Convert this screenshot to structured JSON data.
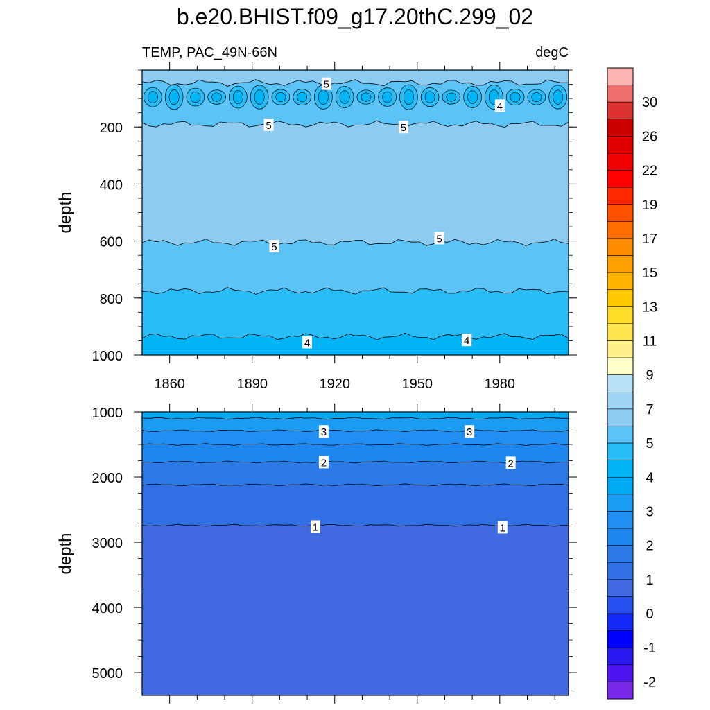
{
  "title": "b.e20.BHIST.f09_g17.20thC.299_02",
  "subtitle_left": "TEMP, PAC_49N-66N",
  "subtitle_right": "degC",
  "chart_data": [
    {
      "type": "heatmap",
      "panel": "upper",
      "ylabel": "depth",
      "ylim": [
        0,
        1000
      ],
      "y_reversed": true,
      "yticks": [
        "200",
        "400",
        "600",
        "800",
        "1000"
      ],
      "xlim": [
        1850,
        2005
      ],
      "xticks": [
        "1860",
        "1890",
        "1920",
        "1950",
        "1980"
      ],
      "bands": [
        {
          "top": 0,
          "bottom": 45,
          "color": "#8ecbf0"
        },
        {
          "top": 45,
          "bottom": 190,
          "color": "#5bc3f5"
        },
        {
          "top": 190,
          "bottom": 605,
          "color": "#8ecbf0"
        },
        {
          "top": 605,
          "bottom": 775,
          "color": "#5bc3f5"
        },
        {
          "top": 775,
          "bottom": 935,
          "color": "#29bdf8"
        },
        {
          "top": 935,
          "bottom": 1000,
          "color": "#00b4f5"
        }
      ],
      "contour_labels": [
        {
          "text": "5",
          "x": 1917,
          "y": 48
        },
        {
          "text": "4",
          "x": 1980,
          "y": 125
        },
        {
          "text": "5",
          "x": 1896,
          "y": 192
        },
        {
          "text": "5",
          "x": 1945,
          "y": 200
        },
        {
          "text": "5",
          "x": 1898,
          "y": 618
        },
        {
          "text": "5",
          "x": 1958,
          "y": 590
        },
        {
          "text": "4",
          "x": 1910,
          "y": 955
        },
        {
          "text": "4",
          "x": 1968,
          "y": 947
        }
      ]
    },
    {
      "type": "heatmap",
      "panel": "lower",
      "ylabel": "depth",
      "ylim": [
        1000,
        5350
      ],
      "y_reversed": true,
      "yticks": [
        "1000",
        "2000",
        "3000",
        "4000",
        "5000"
      ],
      "xlim": [
        1850,
        2005
      ],
      "bands": [
        {
          "top": 1000,
          "bottom": 1100,
          "color": "#00aaf2"
        },
        {
          "top": 1100,
          "bottom": 1290,
          "color": "#1a9cf5"
        },
        {
          "top": 1290,
          "bottom": 1500,
          "color": "#218ef3"
        },
        {
          "top": 1500,
          "bottom": 1770,
          "color": "#1d86ef"
        },
        {
          "top": 1770,
          "bottom": 2120,
          "color": "#2b7ae8"
        },
        {
          "top": 2120,
          "bottom": 2740,
          "color": "#3070e4"
        },
        {
          "top": 2740,
          "bottom": 5350,
          "color": "#4169e1"
        }
      ],
      "contour_labels": [
        {
          "text": "3",
          "x": 1916,
          "y": 1300
        },
        {
          "text": "3",
          "x": 1969,
          "y": 1300
        },
        {
          "text": "2",
          "x": 1916,
          "y": 1770
        },
        {
          "text": "2",
          "x": 1984,
          "y": 1780
        },
        {
          "text": "1",
          "x": 1913,
          "y": 2760
        },
        {
          "text": "1",
          "x": 1981,
          "y": 2770
        }
      ]
    }
  ],
  "colorbar": {
    "labels": [
      "30",
      "26",
      "22",
      "19",
      "17",
      "15",
      "13",
      "11",
      "9",
      "7",
      "5",
      "4",
      "3",
      "2",
      "1",
      "0",
      "-1",
      "-2"
    ],
    "colors": [
      "#ffb4b4",
      "#f07070",
      "#dc3232",
      "#cd0000",
      "#e10000",
      "#f00000",
      "#ff0000",
      "#ff2800",
      "#ff5000",
      "#ff6e00",
      "#ff8c00",
      "#ffa000",
      "#ffb400",
      "#ffc800",
      "#ffdc28",
      "#ffe650",
      "#fff08c",
      "#ffffc8",
      "#b9e2f8",
      "#a0d5f5",
      "#8ecbf0",
      "#5bc3f5",
      "#29bdf8",
      "#00b4f5",
      "#00aaf2",
      "#1a9cf5",
      "#218ef3",
      "#1d86ef",
      "#2b7ae8",
      "#3070e4",
      "#4169e1",
      "#2850f0",
      "#1428f5",
      "#0000ff",
      "#2818f0",
      "#5014f0",
      "#7828e6"
    ]
  }
}
